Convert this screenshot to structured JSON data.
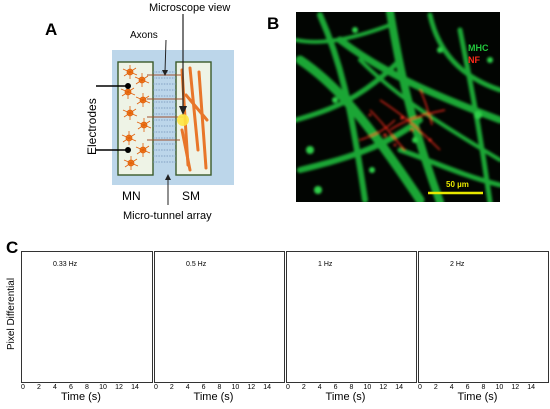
{
  "panel_a": {
    "letter": "A",
    "microscope_label": "Microscope view",
    "axons_label": "Axons",
    "electrodes_label": "Electrodes",
    "mn_label": "MN",
    "sm_label": "SM",
    "tunnel_label": "Micro-tunnel array"
  },
  "panel_b": {
    "letter": "B",
    "legend_mhc": "MHC",
    "legend_nf": "NF",
    "scale_bar_label": "50 µm",
    "colors": {
      "mhc": "#22c53c",
      "nf": "#ff2a1a",
      "scale": "#e8e800"
    }
  },
  "panel_c": {
    "letter": "C",
    "ylabel": "Pixel Differential",
    "trace_color": "#2020d0",
    "stim_color": "#555555"
  },
  "chart_data": [
    {
      "type": "line",
      "title": "0.33 Hz",
      "xlabel": "Time (s)",
      "ylabel": "Pixel Differential",
      "xlim": [
        0,
        16
      ],
      "xticks": [
        0,
        2,
        4,
        6,
        8,
        10,
        12,
        14
      ],
      "frequency_hz": 0.33,
      "series": [
        {
          "x": [],
          "y": []
        }
      ]
    },
    {
      "type": "line",
      "title": "0.5 Hz",
      "xlabel": "Time (s)",
      "xlim": [
        0,
        16
      ],
      "xticks": [
        0,
        2,
        4,
        6,
        8,
        10,
        12,
        14
      ],
      "frequency_hz": 0.5,
      "series": [
        {
          "x": [],
          "y": []
        }
      ]
    },
    {
      "type": "line",
      "title": "1 Hz",
      "xlabel": "Time (s)",
      "xlim": [
        0,
        16
      ],
      "xticks": [
        0,
        2,
        4,
        6,
        8,
        10,
        12,
        14
      ],
      "frequency_hz": 1,
      "series": [
        {
          "x": [],
          "y": []
        }
      ]
    },
    {
      "type": "line",
      "title": "2 Hz",
      "xlabel": "Time (s)",
      "xlim": [
        0,
        16
      ],
      "xticks": [
        0,
        2,
        4,
        6,
        8,
        10,
        12,
        14
      ],
      "frequency_hz": 2,
      "series": [
        {
          "x": [],
          "y": []
        }
      ]
    }
  ]
}
